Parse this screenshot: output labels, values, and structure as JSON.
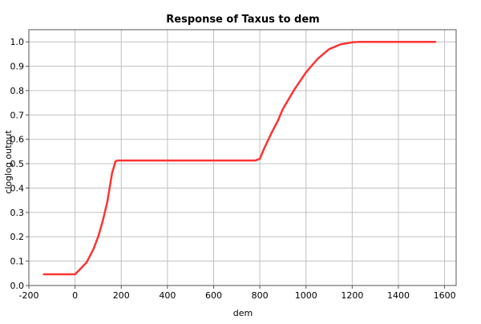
{
  "chart_data": {
    "type": "line",
    "title": "Response of Taxus to dem",
    "xlabel": "dem",
    "ylabel": "cloglog output",
    "xlim": [
      -200,
      1650
    ],
    "ylim": [
      0,
      1.05
    ],
    "xticks": [
      -200,
      0,
      200,
      400,
      600,
      800,
      1000,
      1200,
      1400,
      1600
    ],
    "yticks": [
      0.0,
      0.1,
      0.2,
      0.3,
      0.4,
      0.5,
      0.6,
      0.7,
      0.8,
      0.9,
      1.0
    ],
    "xtick_labels": [
      "-200",
      "0",
      "200",
      "400",
      "600",
      "800",
      "1000",
      "1200",
      "1400",
      "1600"
    ],
    "ytick_labels": [
      "0.0",
      "0.1",
      "0.2",
      "0.3",
      "0.4",
      "0.5",
      "0.6",
      "0.7",
      "0.8",
      "0.9",
      "1.0"
    ],
    "grid": true,
    "series": [
      {
        "color": "#ff3333",
        "x": [
          -135,
          0,
          20,
          50,
          80,
          100,
          120,
          140,
          160,
          175,
          185,
          200,
          400,
          600,
          780,
          800,
          820,
          850,
          880,
          900,
          950,
          1000,
          1050,
          1100,
          1150,
          1200,
          1230,
          1300,
          1400,
          1560
        ],
        "y": [
          0.046,
          0.046,
          0.065,
          0.095,
          0.15,
          0.2,
          0.265,
          0.345,
          0.46,
          0.51,
          0.513,
          0.513,
          0.513,
          0.513,
          0.513,
          0.52,
          0.565,
          0.625,
          0.68,
          0.725,
          0.805,
          0.875,
          0.93,
          0.97,
          0.99,
          0.998,
          1.0,
          1.0,
          1.0,
          1.0
        ]
      }
    ]
  }
}
